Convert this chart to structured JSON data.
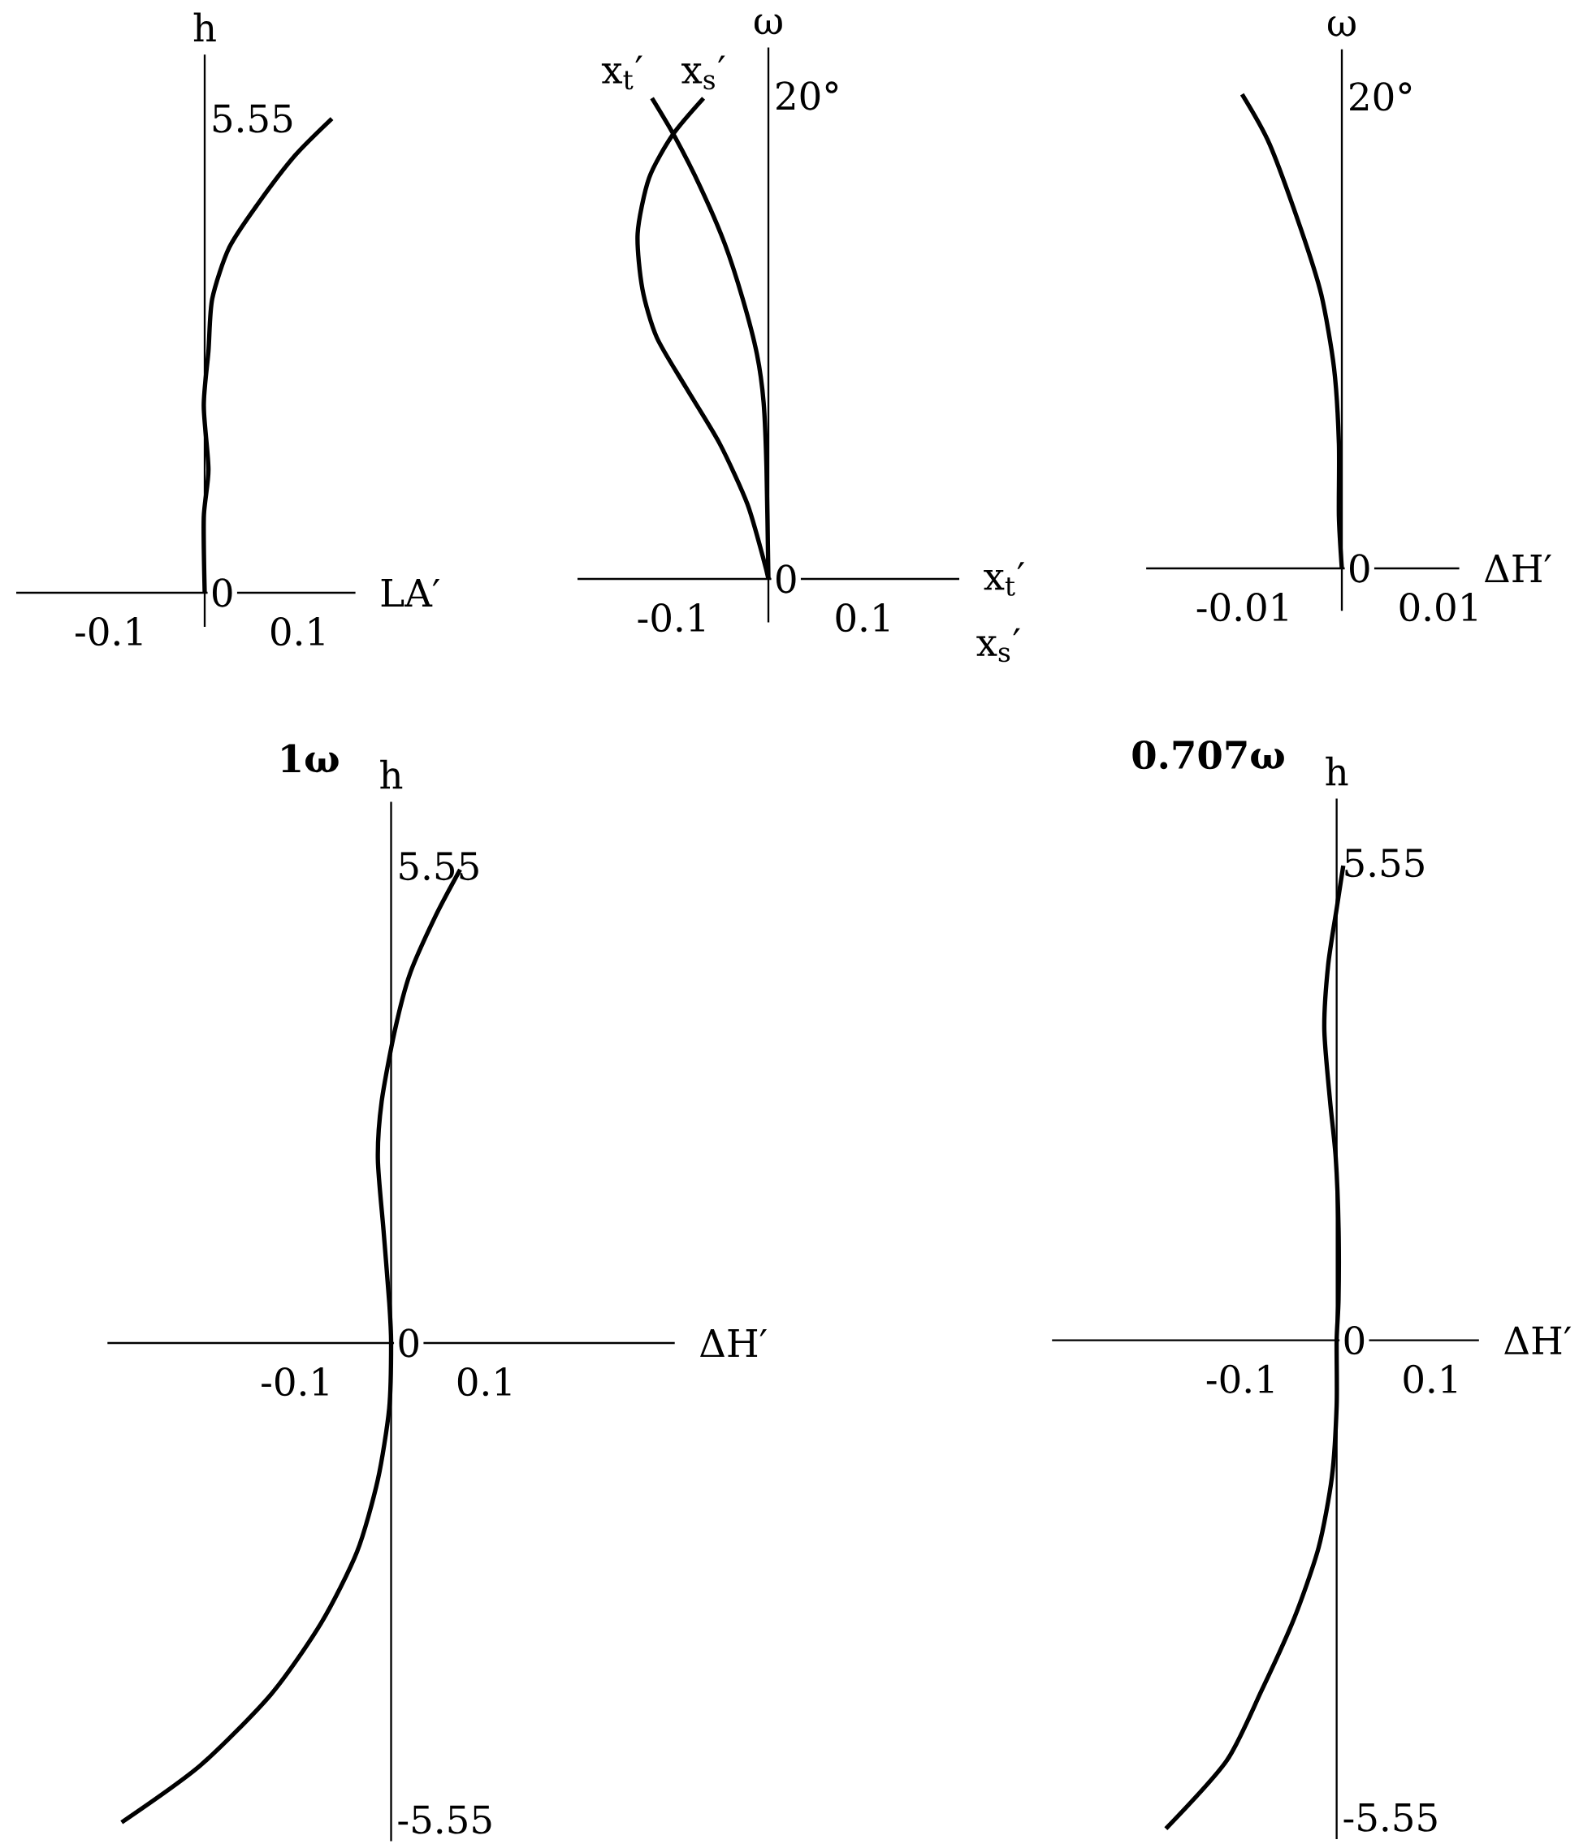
{
  "chart_data": [
    {
      "type": "line",
      "xlabel": "LA′",
      "ylabel": "h",
      "xlim": [
        -0.2,
        0.16
      ],
      "ylim": [
        -0.4,
        6.3
      ],
      "xticks": [
        -0.1,
        0.1
      ],
      "yticks": [
        0,
        5.55
      ],
      "marker": "none",
      "series": [
        {
          "color": "#000000",
          "x": [
            0,
            -0.001,
            0.004,
            -0.001,
            0.004,
            0.008,
            0.026,
            0.057,
            0.096,
            0.135
          ],
          "values": [
            0,
            0.88,
            1.44,
            2.19,
            2.83,
            3.44,
            4.04,
            4.56,
            5.12,
            5.55
          ]
        }
      ]
    },
    {
      "type": "line",
      "xlabel": "x$_{t}$′",
      "ylabel": "ω",
      "annotations": [
        "x$_{s}$′"
      ],
      "xlim": [
        -0.2,
        0.2
      ],
      "ylim": [
        -1.8,
        22
      ],
      "xticks": [
        -0.1,
        0.1
      ],
      "yticks": [
        0,
        {
          "value": 20,
          "label": "20°"
        }
      ],
      "marker": "none",
      "series": [
        {
          "name": "x$_{t}$′",
          "color": "#000000",
          "x": [
            -0.122,
            -0.098,
            -0.071,
            -0.046,
            -0.027,
            -0.012,
            -0.005,
            -0.002,
            0
          ],
          "values": [
            19.9,
            18.3,
            16.2,
            13.9,
            11.6,
            9.3,
            7.3,
            4.6,
            0
          ]
        },
        {
          "name": "x$_{s}$′",
          "color": "#000000",
          "x": [
            -0.068,
            -0.1,
            -0.125,
            -0.137,
            -0.132,
            -0.117,
            -0.086,
            -0.051,
            -0.022,
            -0.005,
            0
          ],
          "values": [
            19.9,
            18.4,
            16.6,
            14.3,
            12.0,
            10.0,
            7.9,
            5.6,
            3.1,
            0.8,
            0
          ]
        }
      ]
    },
    {
      "type": "line",
      "xlabel": "ΔH′",
      "ylabel": "ω",
      "xlim": [
        -0.02,
        0.012
      ],
      "ylim": [
        -1.8,
        22
      ],
      "xticks": [
        -0.01,
        0.01
      ],
      "yticks": [
        0,
        {
          "value": 20,
          "label": "20°"
        }
      ],
      "marker": "none",
      "series": [
        {
          "color": "#000000",
          "x": [
            -0.0102,
            -0.0074,
            -0.0042,
            -0.0021,
            -0.0008,
            -0.0003,
            -0.0003,
            0
          ],
          "values": [
            20.1,
            18.0,
            14.4,
            11.6,
            8.5,
            5.3,
            2.2,
            0
          ]
        }
      ]
    },
    {
      "type": "line",
      "title": "1ω",
      "xlabel": "ΔH′",
      "ylabel": "h",
      "xlim": [
        -0.3,
        0.3
      ],
      "ylim": [
        -5.8,
        6.3
      ],
      "xticks": [
        -0.1,
        0.1
      ],
      "yticks": [
        -5.55,
        0,
        5.55
      ],
      "marker": "none",
      "series": [
        {
          "color": "#000000",
          "x": [
            0.073,
            0.047,
            0.02,
            0.004,
            -0.01,
            -0.014,
            -0.008,
            -0.002,
            0,
            -0.002,
            -0.014,
            -0.036,
            -0.074,
            -0.127,
            -0.202,
            -0.285
          ],
          "values": [
            5.51,
            4.97,
            4.3,
            3.64,
            2.81,
            2.14,
            1.31,
            0.48,
            0,
            -0.76,
            -1.59,
            -2.43,
            -3.26,
            -4.09,
            -4.92,
            -5.58
          ]
        }
      ]
    },
    {
      "type": "line",
      "title": "0.707ω",
      "xlabel": "ΔH′",
      "ylabel": "h",
      "xlim": [
        -0.3,
        0.15
      ],
      "ylim": [
        -5.8,
        6.3
      ],
      "xticks": [
        -0.1,
        0.1
      ],
      "yticks": [
        -5.55,
        0,
        5.55
      ],
      "marker": "none",
      "series": [
        {
          "color": "#000000",
          "x": [
            0.007,
            0,
            -0.009,
            -0.013,
            -0.007,
            -0.001,
            0.002,
            0.002,
            0,
            0,
            -0.005,
            -0.019,
            -0.045,
            -0.079,
            -0.116,
            -0.18
          ],
          "values": [
            5.52,
            5.02,
            4.36,
            3.62,
            2.79,
            2.13,
            1.31,
            0.48,
            0,
            -0.76,
            -1.59,
            -2.41,
            -3.24,
            -4.07,
            -4.89,
            -5.68
          ]
        }
      ]
    }
  ]
}
